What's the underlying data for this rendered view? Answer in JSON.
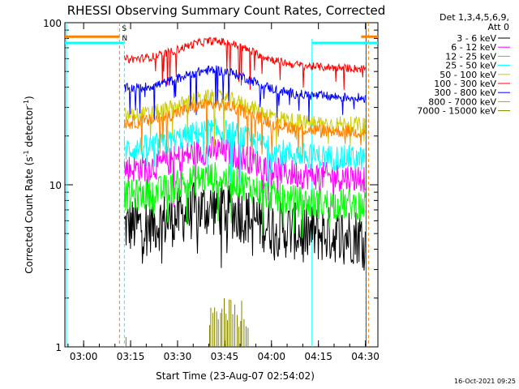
{
  "chart_data": {
    "type": "line",
    "title": "RHESSI Observing Summary Count Rates, Corrected",
    "xlabel": "Start Time (23-Aug-07 02:54:02)",
    "ylabel_main": "Corrected Count Rate (s",
    "ylabel_sup1": "-1",
    "ylabel_mid": " detector",
    "ylabel_sup2": "-1",
    "ylabel_end": ")",
    "yscale": "log",
    "ylim": [
      1,
      100
    ],
    "xlim": [
      "02:54",
      "04:34"
    ],
    "x_ticks": [
      {
        "label": "03:00",
        "value": 360
      },
      {
        "label": "03:15",
        "value": 1260
      },
      {
        "label": "03:30",
        "value": 2160
      },
      {
        "label": "03:45",
        "value": 3060
      },
      {
        "label": "04:00",
        "value": 3960
      },
      {
        "label": "04:15",
        "value": 4860
      },
      {
        "label": "04:30",
        "value": 5760
      }
    ],
    "y_ticks": [
      {
        "label": "1",
        "value": 1
      },
      {
        "label": "10",
        "value": 10
      },
      {
        "label": "100",
        "value": 100
      }
    ],
    "legend_header": [
      "Det 1,3,4,5,6,9,",
      "Att 0"
    ],
    "legend_position": "right",
    "series": [
      {
        "name": "3 - 6 keV",
        "color": "#000000",
        "base": 5.5,
        "noise": 0.18,
        "drop": 4.2
      },
      {
        "name": "6 - 12 keV",
        "color": "#ff00ff",
        "base": 12.5,
        "noise": 0.09,
        "drop": 9.5
      },
      {
        "name": "12 - 25 keV",
        "color": "#00ff00",
        "base": 8.5,
        "noise": 0.1,
        "drop": 6.5
      },
      {
        "name": "25 - 50 keV",
        "color": "#00ffff",
        "base": 16.5,
        "noise": 0.08,
        "drop": 13.5
      },
      {
        "name": "50 - 100 keV",
        "color": "#cccc00",
        "base": 26.5,
        "noise": 0.05,
        "drop": 22
      },
      {
        "name": "100 - 300 keV",
        "color": "#ff0000",
        "base": 59,
        "noise": 0.025,
        "drop": 55
      },
      {
        "name": "300 - 800 keV",
        "color": "#0000ff",
        "base": 39,
        "noise": 0.03,
        "drop": 35
      },
      {
        "name": "800 - 7000 keV",
        "color": "#ff8000",
        "base": 24,
        "noise": 0.04,
        "drop": 20
      },
      {
        "name": "7000 - 15000 keV",
        "color": "#808000",
        "base": 1,
        "noise": 0,
        "drop": 1
      }
    ],
    "orbit_markers": {
      "eclipse_ends": [
        "03:12",
        "04:31"
      ],
      "saa_lines": [
        "03:14",
        "04:13",
        "04:30"
      ],
      "saa_levels": [
        82,
        75
      ]
    },
    "annotations": [
      "S",
      "N"
    ]
  },
  "footer": {
    "timestamp": "16-Oct-2021 09:25"
  }
}
